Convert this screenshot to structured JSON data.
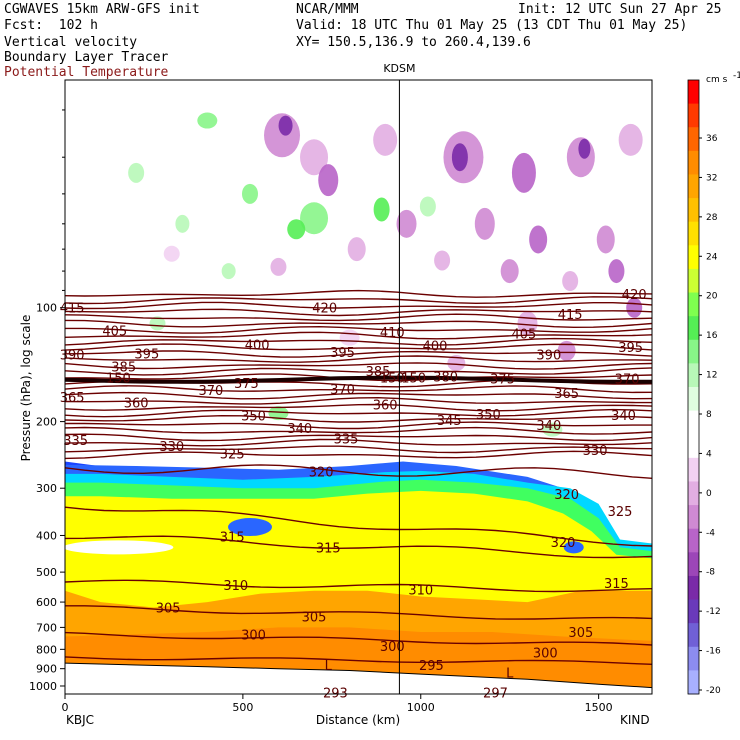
{
  "header": {
    "run": "CGWAVES 15km ARW-GFS init",
    "org": "NCAR/MMM",
    "init": "Init: 12 UTC Sun 27 Apr 25",
    "fcst": "Fcst:  102 h",
    "valid": "Valid: 18 UTC Thu 01 May 25 (13 CDT Thu 01 May 25)",
    "field1": "Vertical velocity",
    "xy": "XY= 150.5,136.9 to 260.4,139.6",
    "field2": "Boundary Layer Tracer",
    "field3": "Potential Temperature"
  },
  "colors": {
    "theta": "#6b0000",
    "tropopause": "#1a0000"
  },
  "chart_data": {
    "type": "heatmap",
    "title": "",
    "xlabel": "Distance (km)",
    "ylabel": "Pressure (hPa), log scale",
    "x_ticks": [
      "0",
      "500",
      "1000",
      "1500"
    ],
    "xlim": [
      0,
      1650
    ],
    "y_ticks": [
      "100",
      "200",
      "300",
      "400",
      "500",
      "600",
      "700",
      "800",
      "900",
      "1000"
    ],
    "y_tick_values": [
      100,
      200,
      300,
      400,
      500,
      600,
      700,
      800,
      900,
      1000
    ],
    "ylim": [
      1050,
      25
    ],
    "y_scale": "log",
    "left_station": "KBJC",
    "right_station": "KIND",
    "marker_station": "KDSM",
    "marker_x": 940,
    "colorbar": {
      "unit": "cm s",
      "unit_sup": "-1",
      "labels": [
        "36",
        "32",
        "28",
        "24",
        "20",
        "16",
        "12",
        "8",
        "4",
        "0",
        "-4",
        "-8",
        "-12",
        "-16",
        "-20"
      ],
      "colors": [
        "#ff0000",
        "#ff3a00",
        "#ff6600",
        "#ff8c00",
        "#ffa500",
        "#ffc000",
        "#ffe000",
        "#ffff00",
        "#ccff33",
        "#7fff4f",
        "#55ee55",
        "#88f588",
        "#b8f8b8",
        "#e0fde0",
        "#ffffff",
        "#ffffff",
        "#f2d2f2",
        "#e2aee2",
        "#cf8ad3",
        "#b864c8",
        "#9c46b8",
        "#7a2aa8",
        "#6a3aba",
        "#7060d6",
        "#8c8cf0",
        "#a8b0ff"
      ]
    },
    "theta_labels": [
      {
        "x": 20,
        "p": 100,
        "t": "415"
      },
      {
        "x": 140,
        "p": 115,
        "t": "405"
      },
      {
        "x": 730,
        "p": 100,
        "t": "420"
      },
      {
        "x": 920,
        "p": 116,
        "t": "410"
      },
      {
        "x": 1290,
        "p": 117,
        "t": "405"
      },
      {
        "x": 1420,
        "p": 104,
        "t": "415"
      },
      {
        "x": 1600,
        "p": 92,
        "t": "420"
      },
      {
        "x": 20,
        "p": 133,
        "t": "390"
      },
      {
        "x": 230,
        "p": 132,
        "t": "395"
      },
      {
        "x": 540,
        "p": 125,
        "t": "400"
      },
      {
        "x": 780,
        "p": 131,
        "t": "395"
      },
      {
        "x": 1040,
        "p": 126,
        "t": "400"
      },
      {
        "x": 1360,
        "p": 133,
        "t": "390"
      },
      {
        "x": 1590,
        "p": 127,
        "t": "395"
      },
      {
        "x": 165,
        "p": 143,
        "t": "385"
      },
      {
        "x": 880,
        "p": 147,
        "t": "385"
      },
      {
        "x": 1070,
        "p": 152,
        "t": "380"
      },
      {
        "x": 1230,
        "p": 154,
        "t": "375"
      },
      {
        "x": 1580,
        "p": 154,
        "t": "370"
      },
      {
        "x": 410,
        "p": 165,
        "t": "370"
      },
      {
        "x": 510,
        "p": 158,
        "t": "375"
      },
      {
        "x": 780,
        "p": 164,
        "t": "370"
      },
      {
        "x": 20,
        "p": 172,
        "t": "365"
      },
      {
        "x": 200,
        "p": 178,
        "t": "360"
      },
      {
        "x": 900,
        "p": 180,
        "t": "360"
      },
      {
        "x": 1410,
        "p": 168,
        "t": "365"
      },
      {
        "x": 530,
        "p": 193,
        "t": "350"
      },
      {
        "x": 1190,
        "p": 191,
        "t": "350"
      },
      {
        "x": 1080,
        "p": 198,
        "t": "345"
      },
      {
        "x": 660,
        "p": 208,
        "t": "340"
      },
      {
        "x": 1360,
        "p": 204,
        "t": "340"
      },
      {
        "x": 1570,
        "p": 192,
        "t": "340"
      },
      {
        "x": 30,
        "p": 224,
        "t": "335"
      },
      {
        "x": 790,
        "p": 222,
        "t": "335"
      },
      {
        "x": 300,
        "p": 232,
        "t": "330"
      },
      {
        "x": 1490,
        "p": 238,
        "t": "330"
      },
      {
        "x": 470,
        "p": 243,
        "t": "325"
      },
      {
        "x": 1560,
        "p": 345,
        "t": "325"
      },
      {
        "x": 720,
        "p": 271,
        "t": "320"
      },
      {
        "x": 1410,
        "p": 311,
        "t": "320"
      },
      {
        "x": 1400,
        "p": 416,
        "t": "320"
      },
      {
        "x": 470,
        "p": 402,
        "t": "315"
      },
      {
        "x": 740,
        "p": 430,
        "t": "315"
      },
      {
        "x": 1550,
        "p": 535,
        "t": "315"
      },
      {
        "x": 480,
        "p": 540,
        "t": "310"
      },
      {
        "x": 1000,
        "p": 556,
        "t": "310"
      },
      {
        "x": 290,
        "p": 620,
        "t": "305"
      },
      {
        "x": 700,
        "p": 655,
        "t": "305"
      },
      {
        "x": 1450,
        "p": 720,
        "t": "305"
      },
      {
        "x": 530,
        "p": 730,
        "t": "300"
      },
      {
        "x": 920,
        "p": 785,
        "t": "300"
      },
      {
        "x": 1350,
        "p": 815,
        "t": "300"
      },
      {
        "x": 1030,
        "p": 880,
        "t": "295"
      },
      {
        "x": 760,
        "p": 1040,
        "t": "293"
      },
      {
        "x": 1210,
        "p": 1040,
        "t": "297"
      },
      {
        "x": 740,
        "p": 880,
        "t": "L"
      },
      {
        "x": 1250,
        "p": 920,
        "t": "L"
      },
      {
        "x": 150,
        "p": 155,
        "t": "150"
      },
      {
        "x": 920,
        "p": 155,
        "t": "150"
      },
      {
        "x": 980,
        "p": 155,
        "t": "150"
      }
    ]
  }
}
